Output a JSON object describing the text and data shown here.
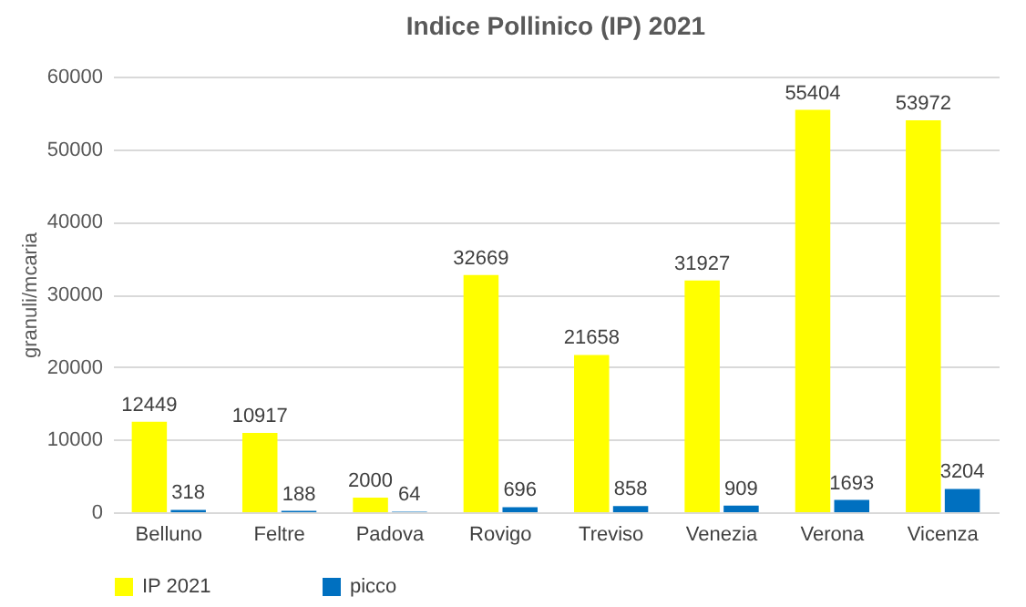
{
  "chart_data": {
    "type": "bar",
    "title": "Indice Pollinico (IP) 2021",
    "ylabel": "granuli/mcaria",
    "categories": [
      "Belluno",
      "Feltre",
      "Padova",
      "Rovigo",
      "Treviso",
      "Venezia",
      "Verona",
      "Vicenza"
    ],
    "series": [
      {
        "name": "IP 2021",
        "color": "#ffff00",
        "values": [
          12449,
          10917,
          2000,
          32669,
          21658,
          31927,
          55404,
          53972
        ]
      },
      {
        "name": "picco",
        "color": "#0070c0",
        "values": [
          318,
          188,
          64,
          696,
          858,
          909,
          1693,
          3204
        ]
      }
    ],
    "ylim": [
      0,
      60000
    ],
    "yticks": [
      0,
      10000,
      20000,
      30000,
      40000,
      50000,
      60000
    ],
    "grid": "y",
    "legend": "bottom",
    "data_labels": true
  }
}
